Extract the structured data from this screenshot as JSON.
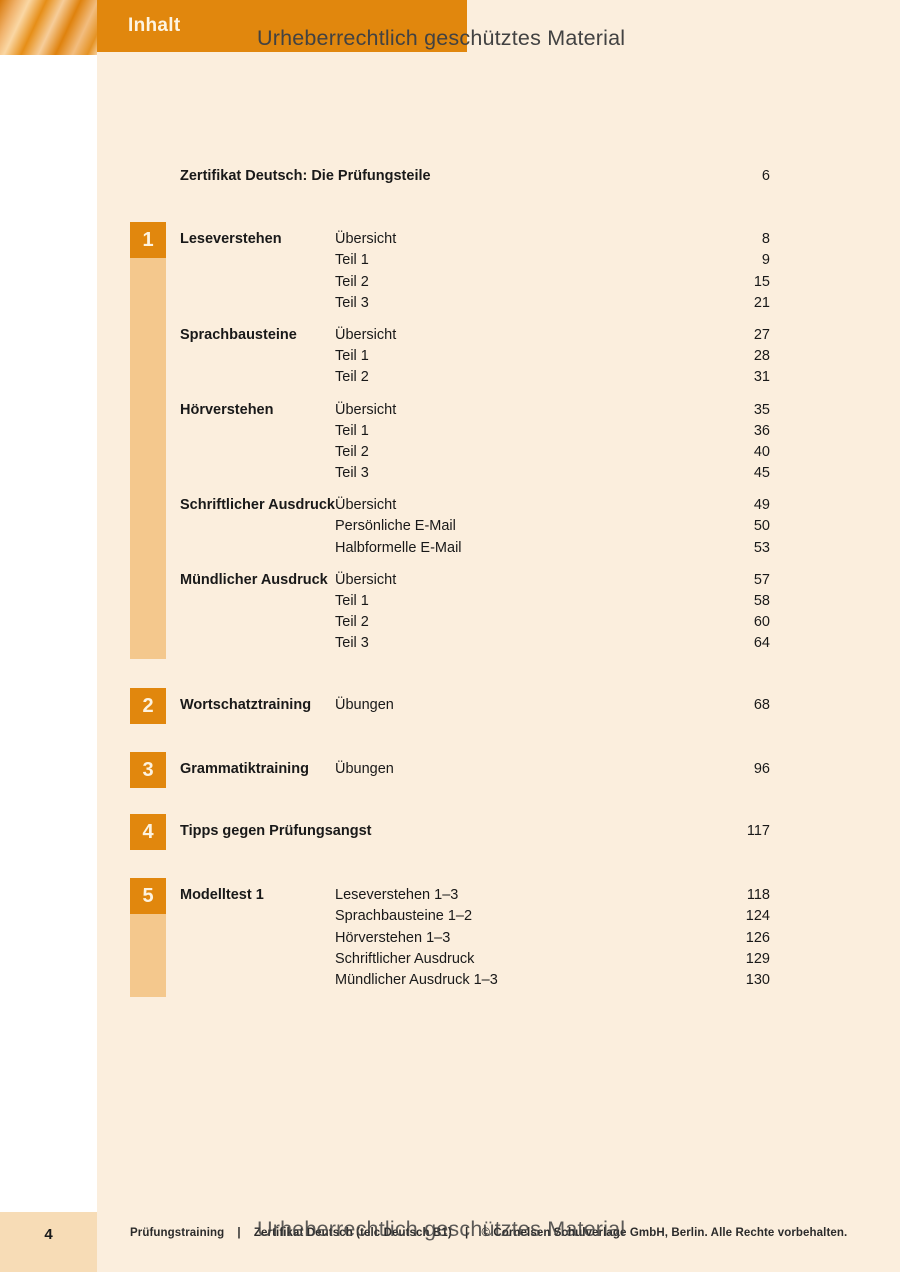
{
  "header": {
    "tab_label": "Inhalt",
    "watermark": "Urheberrechtlich geschütztes Material"
  },
  "toc": {
    "intro": {
      "label": "Zertifikat Deutsch: Die Prüfungsteile",
      "page": "6"
    },
    "sections": [
      {
        "number": "1",
        "has_strip": true,
        "groups": [
          {
            "label": "Leseverstehen",
            "items": [
              {
                "title": "Übersicht",
                "page": "8"
              },
              {
                "title": "Teil 1",
                "page": "9"
              },
              {
                "title": "Teil 2",
                "page": "15"
              },
              {
                "title": "Teil 3",
                "page": "21"
              }
            ]
          },
          {
            "label": "Sprachbausteine",
            "items": [
              {
                "title": "Übersicht",
                "page": "27"
              },
              {
                "title": "Teil 1",
                "page": "28"
              },
              {
                "title": "Teil 2",
                "page": "31"
              }
            ]
          },
          {
            "label": "Hörverstehen",
            "items": [
              {
                "title": "Übersicht",
                "page": "35"
              },
              {
                "title": "Teil 1",
                "page": "36"
              },
              {
                "title": "Teil 2",
                "page": "40"
              },
              {
                "title": "Teil 3",
                "page": "45"
              }
            ]
          },
          {
            "label": "Schriftlicher Ausdruck",
            "items": [
              {
                "title": "Übersicht",
                "page": "49"
              },
              {
                "title": "Persönliche E-Mail",
                "page": "50"
              },
              {
                "title": "Halbformelle E-Mail",
                "page": "53"
              }
            ]
          },
          {
            "label": "Mündlicher Ausdruck",
            "items": [
              {
                "title": "Übersicht",
                "page": "57"
              },
              {
                "title": "Teil 1",
                "page": "58"
              },
              {
                "title": "Teil 2",
                "page": "60"
              },
              {
                "title": "Teil 3",
                "page": "64"
              }
            ]
          }
        ]
      },
      {
        "number": "2",
        "has_strip": false,
        "groups": [
          {
            "label": "Wortschatztraining",
            "items": [
              {
                "title": "Übungen",
                "page": "68"
              }
            ]
          }
        ]
      },
      {
        "number": "3",
        "has_strip": false,
        "groups": [
          {
            "label": "Grammatiktraining",
            "items": [
              {
                "title": "Übungen",
                "page": "96"
              }
            ]
          }
        ]
      },
      {
        "number": "4",
        "has_strip": false,
        "groups": [
          {
            "label": "Tipps gegen Prüfungsangst",
            "items": [
              {
                "title": "",
                "page": "117"
              }
            ]
          }
        ]
      },
      {
        "number": "5",
        "has_strip": true,
        "groups": [
          {
            "label": "Modelltest 1",
            "items": [
              {
                "title": "Leseverstehen 1–3",
                "page": "118"
              },
              {
                "title": "Sprachbausteine 1–2",
                "page": "124"
              },
              {
                "title": "Hörverstehen 1–3",
                "page": "126"
              },
              {
                "title": "Schriftlicher Ausdruck",
                "page": "129"
              },
              {
                "title": "Mündlicher Ausdruck 1–3",
                "page": "130"
              }
            ]
          }
        ]
      }
    ]
  },
  "footer": {
    "page_number": "4",
    "imprint": "Prüfungstraining    |    Zertifikat Deutsch (telc Deutsch B1)    |    © Cornelsen Schulverlage GmbH, Berlin. Alle Rechte vorbehalten.",
    "watermark": "Urheberrechtlich geschütztes Material"
  },
  "colors": {
    "accent_orange": "#e1870d",
    "section_strip": "#f4c88d",
    "page_background": "#fbeedd",
    "footer_strip": "#f7dcb6",
    "watermark_gray": "#424242"
  }
}
